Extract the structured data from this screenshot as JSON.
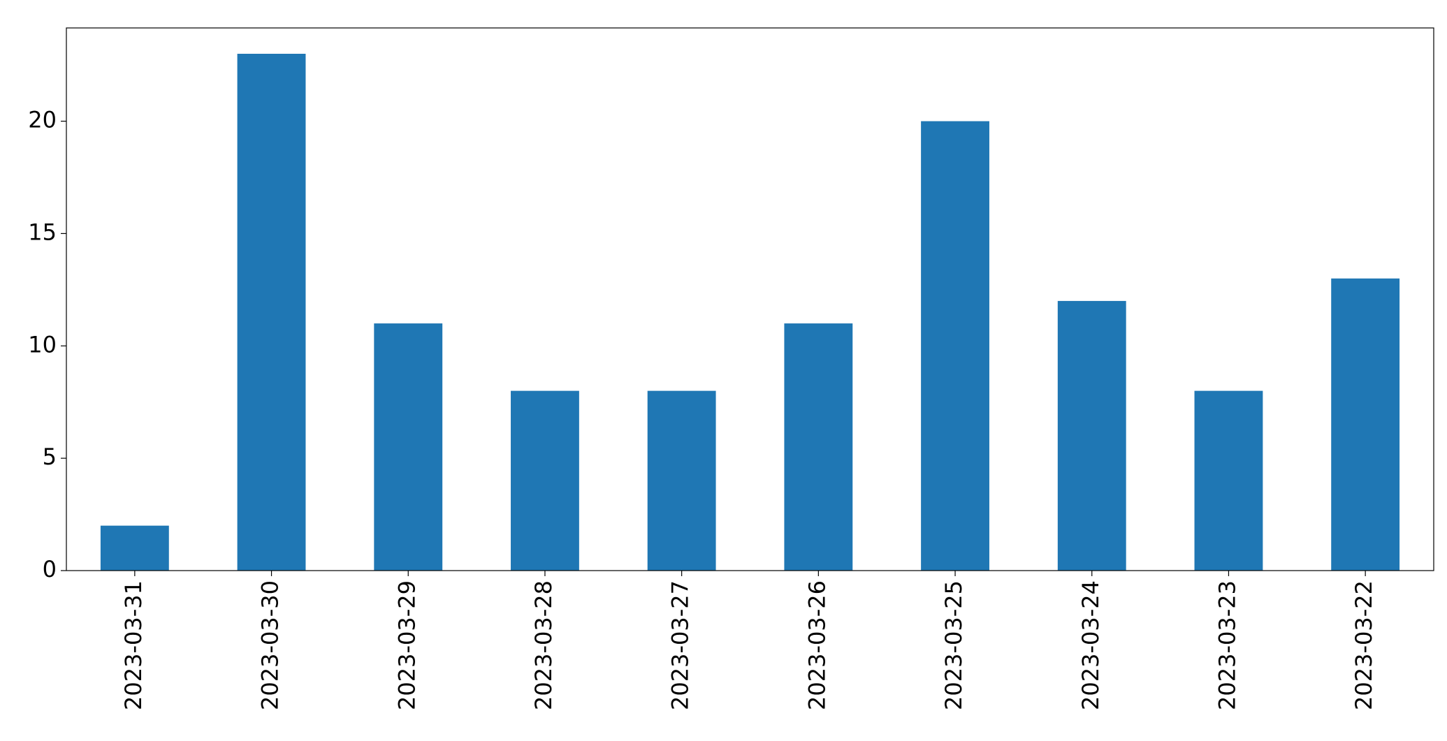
{
  "chart_data": {
    "type": "bar",
    "categories": [
      "2023-03-31",
      "2023-03-30",
      "2023-03-29",
      "2023-03-28",
      "2023-03-27",
      "2023-03-26",
      "2023-03-25",
      "2023-03-24",
      "2023-03-23",
      "2023-03-22"
    ],
    "values": [
      2,
      23,
      11,
      8,
      8,
      11,
      20,
      12,
      8,
      13
    ],
    "color": "#1f77b4",
    "ylim": [
      0,
      24.15
    ],
    "yticks": [
      0,
      5,
      10,
      15,
      20
    ],
    "grid": false
  }
}
